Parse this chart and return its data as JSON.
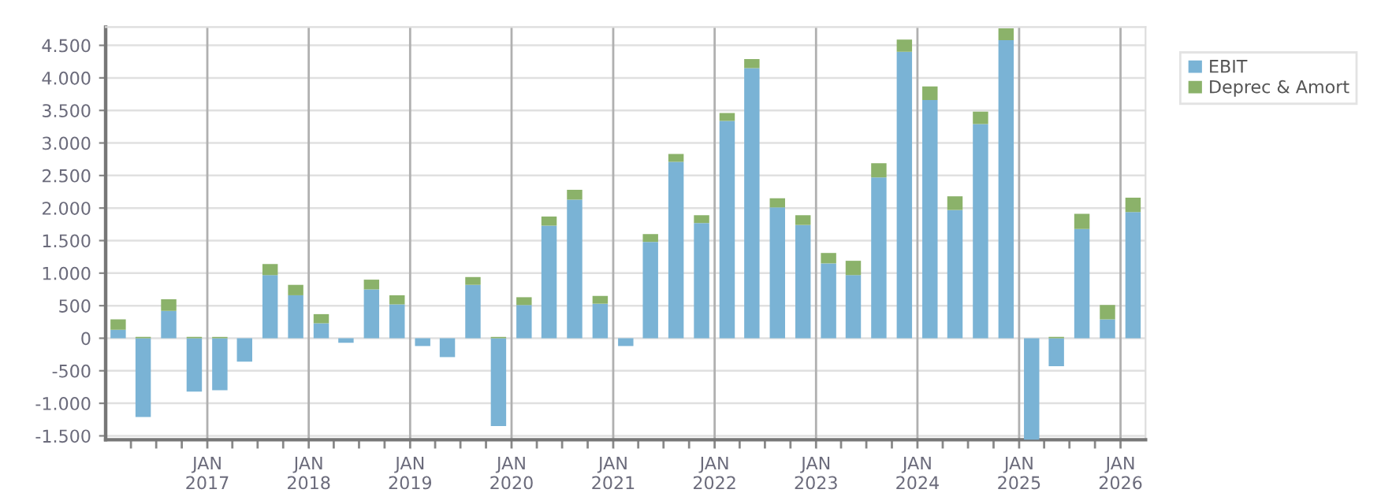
{
  "chart_data": {
    "type": "bar",
    "stacked": true,
    "x": [
      "2016-02-15",
      "2016-05-15",
      "2016-08-15",
      "2016-11-15",
      "2017-02-15",
      "2017-05-15",
      "2017-08-15",
      "2017-11-15",
      "2018-02-15",
      "2018-05-15",
      "2018-08-15",
      "2018-11-15",
      "2019-02-15",
      "2019-05-15",
      "2019-08-15",
      "2019-11-15",
      "2020-02-15",
      "2020-05-15",
      "2020-08-15",
      "2020-11-15",
      "2021-02-15",
      "2021-05-15",
      "2021-08-15",
      "2021-11-15",
      "2022-02-15",
      "2022-05-15",
      "2022-08-15",
      "2022-11-15",
      "2023-02-15",
      "2023-05-15",
      "2023-08-15",
      "2023-11-15",
      "2024-02-15",
      "2024-05-15",
      "2024-08-15",
      "2024-11-15",
      "2025-02-15",
      "2025-05-15",
      "2025-08-15",
      "2025-11-15",
      "2026-02-15"
    ],
    "series": [
      {
        "name": "EBIT",
        "color": "#7ab3d5",
        "values": [
          130,
          -1210,
          420,
          -820,
          -800,
          -360,
          970,
          660,
          230,
          -70,
          750,
          520,
          -120,
          -290,
          820,
          -1350,
          510,
          1730,
          2130,
          530,
          -120,
          1480,
          2710,
          1770,
          3340,
          4150,
          2010,
          1740,
          1150,
          970,
          2470,
          4400,
          3660,
          1970,
          3290,
          4580,
          -1560,
          -430,
          1680,
          290,
          1940
        ]
      },
      {
        "name": "Deprec & Amort",
        "color": "#8bb26a",
        "values": [
          160,
          20,
          180,
          20,
          20,
          null,
          170,
          160,
          140,
          null,
          150,
          140,
          null,
          null,
          120,
          20,
          120,
          140,
          150,
          120,
          null,
          120,
          120,
          120,
          120,
          140,
          140,
          150,
          160,
          220,
          220,
          190,
          210,
          210,
          190,
          180,
          null,
          20,
          230,
          220,
          220
        ]
      }
    ],
    "xlim": [
      "2016-01-01",
      "2026-04-01"
    ],
    "xticks": [
      {
        "value": "2016-04-01",
        "label": null
      },
      {
        "value": "2016-07-01",
        "label": null
      },
      {
        "value": "2016-10-01",
        "label": null
      },
      {
        "value": "2017-01-01",
        "label": "JAN\n2017"
      },
      {
        "value": "2017-04-01",
        "label": null
      },
      {
        "value": "2017-07-01",
        "label": null
      },
      {
        "value": "2017-10-01",
        "label": null
      },
      {
        "value": "2018-01-01",
        "label": "JAN\n2018"
      },
      {
        "value": "2018-04-01",
        "label": null
      },
      {
        "value": "2018-07-01",
        "label": null
      },
      {
        "value": "2018-10-01",
        "label": null
      },
      {
        "value": "2019-01-01",
        "label": "JAN\n2019"
      },
      {
        "value": "2019-04-01",
        "label": null
      },
      {
        "value": "2019-07-01",
        "label": null
      },
      {
        "value": "2019-10-01",
        "label": null
      },
      {
        "value": "2020-01-01",
        "label": "JAN\n2020"
      },
      {
        "value": "2020-04-01",
        "label": null
      },
      {
        "value": "2020-07-01",
        "label": null
      },
      {
        "value": "2020-10-01",
        "label": null
      },
      {
        "value": "2021-01-01",
        "label": "JAN\n2021"
      },
      {
        "value": "2021-04-01",
        "label": null
      },
      {
        "value": "2021-07-01",
        "label": null
      },
      {
        "value": "2021-10-01",
        "label": null
      },
      {
        "value": "2022-01-01",
        "label": "JAN\n2022"
      },
      {
        "value": "2022-04-01",
        "label": null
      },
      {
        "value": "2022-07-01",
        "label": null
      },
      {
        "value": "2022-10-01",
        "label": null
      },
      {
        "value": "2023-01-01",
        "label": "JAN\n2023"
      },
      {
        "value": "2023-04-01",
        "label": null
      },
      {
        "value": "2023-07-01",
        "label": null
      },
      {
        "value": "2023-10-01",
        "label": null
      },
      {
        "value": "2024-01-01",
        "label": "JAN\n2024"
      },
      {
        "value": "2024-04-01",
        "label": null
      },
      {
        "value": "2024-07-01",
        "label": null
      },
      {
        "value": "2024-10-01",
        "label": null
      },
      {
        "value": "2025-01-01",
        "label": "JAN\n2025"
      },
      {
        "value": "2025-04-01",
        "label": null
      },
      {
        "value": "2025-07-01",
        "label": null
      },
      {
        "value": "2025-10-01",
        "label": null
      },
      {
        "value": "2026-01-01",
        "label": "JAN\n2026"
      }
    ],
    "ylim": [
      -1560,
      4780
    ],
    "yticks": [
      {
        "value": -1500,
        "label": "-1.500"
      },
      {
        "value": -1000,
        "label": "-1.000"
      },
      -500,
      0,
      500,
      {
        "value": 1000,
        "label": "1.000"
      },
      {
        "value": 1500,
        "label": "1.500"
      },
      {
        "value": 2000,
        "label": "2.000"
      },
      {
        "value": 2500,
        "label": "2.500"
      },
      {
        "value": 3000,
        "label": "3.000"
      },
      {
        "value": 3500,
        "label": "3.500"
      },
      {
        "value": 4000,
        "label": "4.000"
      },
      {
        "value": 4500,
        "label": "4.500"
      }
    ],
    "grid": true,
    "legend": "top right"
  }
}
